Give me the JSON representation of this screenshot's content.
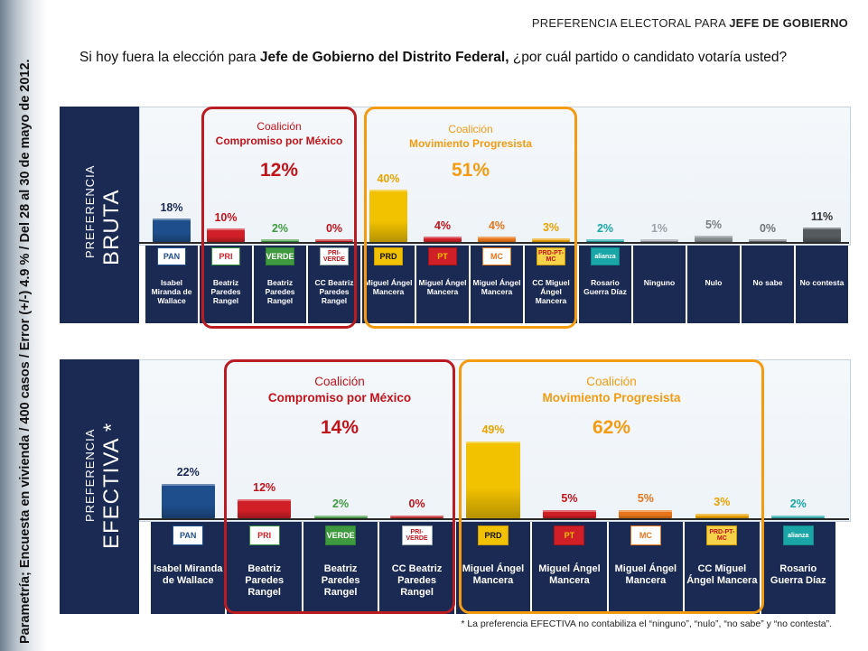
{
  "page_title": {
    "prefix": "PREFERENCIA ELECTORAL PARA ",
    "bold": "JEFE DE GOBIERNO"
  },
  "question": {
    "pre": "Si hoy fuera la elección para ",
    "bold": "Jefe de Gobierno del Distrito Federal,",
    "post": " ¿por cuál partido o candidato votaría usted?"
  },
  "side_text": "Parametría; Encuesta en vivienda / 400 casos / Error (+/-) 4.9 % / Del 28 al 30 de mayo de 2012.",
  "footnote": "* La preferencia EFECTIVA no contabiliza el “ninguno”, “nulo”,  “no sabe” y “no contesta”.",
  "coalitions": {
    "compromiso": {
      "line1": "Coalición",
      "line2": "Compromiso por México",
      "color": "#c0141b"
    },
    "progresista": {
      "line1": "Coalición",
      "line2": "Movimiento Progresista",
      "color": "#f39c12"
    }
  },
  "chart_data": [
    {
      "type": "bar",
      "panel_label_small": "PREFERENCIA",
      "panel_label_big": "BRUTA",
      "unit": "%",
      "ylim": [
        0,
        100
      ],
      "coalition_totals": {
        "compromiso": "12%",
        "progresista": "51%"
      },
      "categories": [
        {
          "name": "Isabel Miranda de Wallace",
          "value": 18,
          "label": "18%",
          "logo": "PAN",
          "color": "#1e4f8c",
          "label_color": "#1b2a52"
        },
        {
          "name": "Beatriz Paredes Rangel",
          "value": 10,
          "label": "10%",
          "logo": "PRI",
          "color": "#d01f27",
          "label_color": "#c0141b"
        },
        {
          "name": "Beatriz Paredes Rangel",
          "value": 2,
          "label": "2%",
          "logo": "VERDE",
          "color": "#3f9a3f",
          "label_color": "#3f9a3f"
        },
        {
          "name": "CC Beatriz Paredes Rangel",
          "value": 0,
          "label": "0%",
          "logo": "PRI-VERDE",
          "color": "#c0141b",
          "label_color": "#c0141b"
        },
        {
          "name": "Miguel Ángel Mancera",
          "value": 40,
          "label": "40%",
          "logo": "PRD",
          "color": "#f2c200",
          "label_color": "#e8a200"
        },
        {
          "name": "Miguel Ángel Mancera",
          "value": 4,
          "label": "4%",
          "logo": "PT",
          "color": "#d01f27",
          "label_color": "#c0141b"
        },
        {
          "name": "Miguel Ángel Mancera",
          "value": 4,
          "label": "4%",
          "logo": "MC",
          "color": "#e8751a",
          "label_color": "#e8751a"
        },
        {
          "name": "CC Miguel Ángel Mancera",
          "value": 3,
          "label": "3%",
          "logo": "PRD-PT-MC",
          "color": "#e8a200",
          "label_color": "#e8a200"
        },
        {
          "name": "Rosario Guerra Díaz",
          "value": 2,
          "label": "2%",
          "logo": "alianza",
          "color": "#1aa6a6",
          "label_color": "#1aa6a6"
        },
        {
          "name": "Ninguno",
          "value": 1,
          "label": "1%",
          "logo": "",
          "color": "#9aa0a6",
          "label_color": "#9aa0a6"
        },
        {
          "name": "Nulo",
          "value": 5,
          "label": "5%",
          "logo": "",
          "color": "#8a8f94",
          "label_color": "#7a7f84"
        },
        {
          "name": "No sabe",
          "value": 0,
          "label": "0%",
          "logo": "",
          "color": "#6e7378",
          "label_color": "#6e7378"
        },
        {
          "name": "No contesta",
          "value": 11,
          "label": "11%",
          "logo": "",
          "color": "#555a5f",
          "label_color": "#333333"
        }
      ]
    },
    {
      "type": "bar",
      "panel_label_small": "PREFERENCIA",
      "panel_label_big": "EFECTIVA *",
      "unit": "%",
      "ylim": [
        0,
        100
      ],
      "coalition_totals": {
        "compromiso": "14%",
        "progresista": "62%"
      },
      "categories": [
        {
          "name": "Isabel Miranda de Wallace",
          "value": 22,
          "label": "22%",
          "logo": "PAN",
          "color": "#1e4f8c",
          "label_color": "#1b2a52"
        },
        {
          "name": "Beatriz Paredes Rangel",
          "value": 12,
          "label": "12%",
          "logo": "PRI",
          "color": "#d01f27",
          "label_color": "#c0141b"
        },
        {
          "name": "Beatriz Paredes Rangel",
          "value": 2,
          "label": "2%",
          "logo": "VERDE",
          "color": "#3f9a3f",
          "label_color": "#3f9a3f"
        },
        {
          "name": "CC Beatriz Paredes Rangel",
          "value": 0,
          "label": "0%",
          "logo": "PRI-VERDE",
          "color": "#c0141b",
          "label_color": "#c0141b"
        },
        {
          "name": "Miguel Ángel Mancera",
          "value": 49,
          "label": "49%",
          "logo": "PRD",
          "color": "#f2c200",
          "label_color": "#e8a200"
        },
        {
          "name": "Miguel Ángel Mancera",
          "value": 5,
          "label": "5%",
          "logo": "PT",
          "color": "#d01f27",
          "label_color": "#c0141b"
        },
        {
          "name": "Miguel Ángel Mancera",
          "value": 5,
          "label": "5%",
          "logo": "MC",
          "color": "#e8751a",
          "label_color": "#e8751a"
        },
        {
          "name": "CC Miguel Ángel Mancera",
          "value": 3,
          "label": "3%",
          "logo": "PRD-PT-MC",
          "color": "#e8a200",
          "label_color": "#e8a200"
        },
        {
          "name": "Rosario Guerra Díaz",
          "value": 2,
          "label": "2%",
          "logo": "alianza",
          "color": "#1aa6a6",
          "label_color": "#1aa6a6"
        }
      ]
    }
  ]
}
